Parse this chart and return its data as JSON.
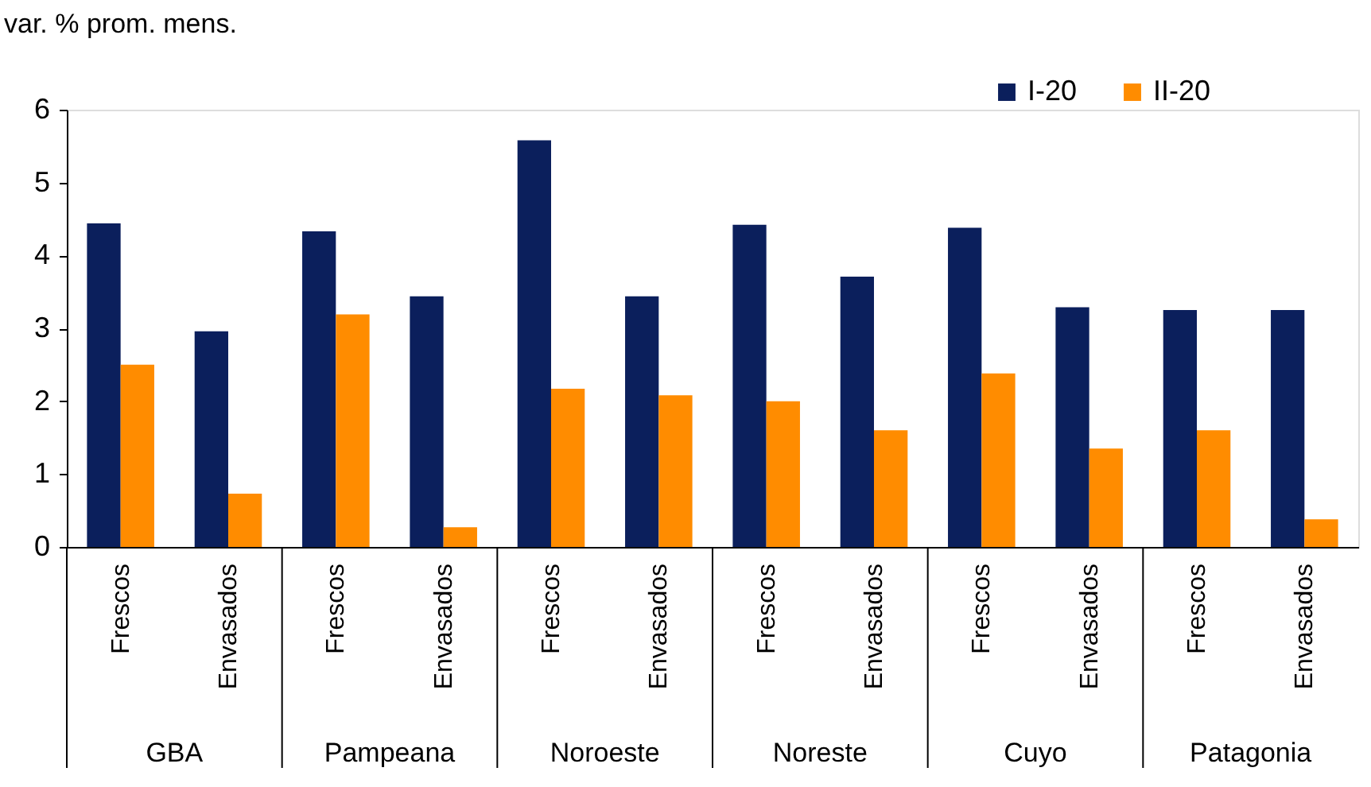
{
  "chart_data": {
    "type": "bar",
    "ylabel": "var. % prom. mens.",
    "categories": [
      "Frescos",
      "Envasados",
      "Frescos",
      "Envasados",
      "Frescos",
      "Envasados",
      "Frescos",
      "Envasados",
      "Frescos",
      "Envasados",
      "Frescos",
      "Envasados"
    ],
    "series": [
      {
        "name": "I-20",
        "color": "#0b1f5c",
        "values": [
          4.44,
          2.96,
          4.33,
          3.44,
          5.58,
          3.44,
          4.42,
          3.71,
          4.38,
          3.29,
          3.25,
          3.25
        ]
      },
      {
        "name": "II-20",
        "color": "#ff8c00",
        "values": [
          2.5,
          0.73,
          3.19,
          0.27,
          2.17,
          2.08,
          2.0,
          1.6,
          2.38,
          1.35,
          1.6,
          0.38
        ]
      }
    ],
    "ylim": [
      0,
      6
    ],
    "yticks": [
      0,
      1,
      2,
      3,
      4,
      5,
      6
    ],
    "grid": false,
    "legend": "top right",
    "annotations": [
      "GBA",
      "Pampeana",
      "Noroeste",
      "Noreste",
      "Cuyo",
      "Patagonia"
    ]
  }
}
